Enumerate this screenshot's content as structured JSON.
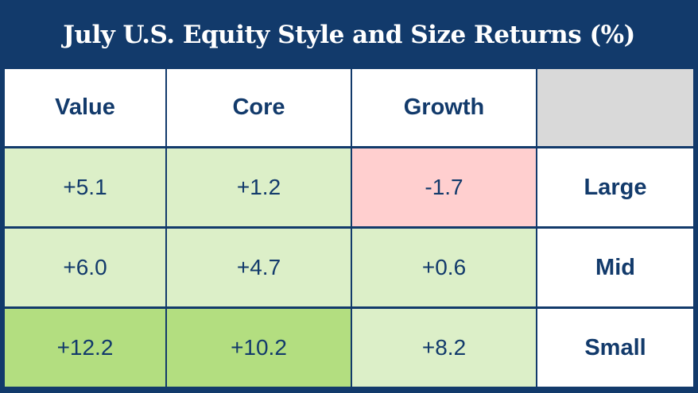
{
  "chart_data": {
    "type": "table",
    "title": "July U.S. Equity Style and Size Returns (%)",
    "columns": [
      "Value",
      "Core",
      "Growth"
    ],
    "rows": [
      {
        "label": "Large",
        "cells": [
          "+5.1",
          "+1.2",
          "-1.7"
        ],
        "values": [
          5.1,
          1.2,
          -1.7
        ]
      },
      {
        "label": "Mid",
        "cells": [
          "+6.0",
          "+4.7",
          "+0.6"
        ],
        "values": [
          6.0,
          4.7,
          0.6
        ]
      },
      {
        "label": "Small",
        "cells": [
          "+12.2",
          "+10.2",
          "+8.2"
        ],
        "values": [
          12.2,
          10.2,
          8.2
        ]
      }
    ]
  },
  "colors": {
    "navy": "#123a6b",
    "negative": "#ffcfcf",
    "positive_light": "#dcefc8",
    "positive_strong": "#b3de80",
    "header_blank": "#d9d9d9"
  }
}
